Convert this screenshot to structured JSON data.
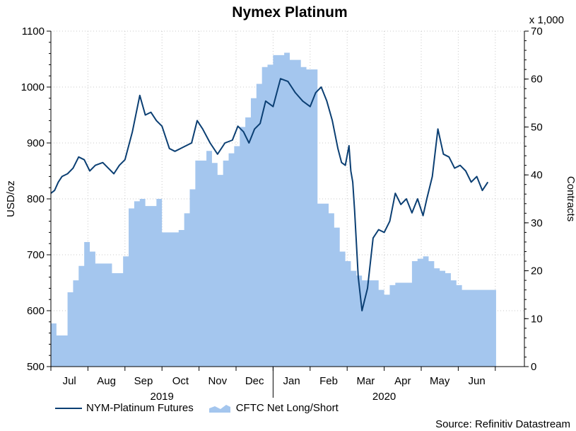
{
  "chart_data": {
    "type": "line",
    "title": "Nymex Platinum",
    "ylabel": "USD/oz",
    "y2label": "Contracts",
    "y2_multiplier_label": "x 1,000",
    "ylim": [
      500,
      1100
    ],
    "y2lim": [
      0,
      70
    ],
    "y_ticks": [
      500,
      600,
      700,
      800,
      900,
      1000,
      1100
    ],
    "y2_ticks": [
      0,
      10,
      20,
      30,
      40,
      50,
      60,
      70
    ],
    "x_month_labels": [
      "Jul",
      "Aug",
      "Sep",
      "Oct",
      "Nov",
      "Dec",
      "Jan",
      "Feb",
      "Mar",
      "Apr",
      "May",
      "Jun"
    ],
    "x_year_labels": [
      {
        "label": "2019",
        "month_index": 3
      },
      {
        "label": "2020",
        "month_index": 9
      }
    ],
    "grid": true,
    "legend_position": "bottom-left",
    "series": [
      {
        "name": "NYM-Platinum Futures",
        "axis": "left",
        "style": "line",
        "color": "#0b3f73",
        "t": [
          0.0,
          0.1,
          0.2,
          0.3,
          0.45,
          0.6,
          0.75,
          0.9,
          1.05,
          1.2,
          1.4,
          1.55,
          1.7,
          1.85,
          2.0,
          2.2,
          2.4,
          2.55,
          2.7,
          2.85,
          3.0,
          3.2,
          3.35,
          3.5,
          3.65,
          3.8,
          3.95,
          4.1,
          4.3,
          4.5,
          4.7,
          4.9,
          5.05,
          5.2,
          5.35,
          5.5,
          5.65,
          5.8,
          6.0,
          6.2,
          6.4,
          6.6,
          6.8,
          7.0,
          7.15,
          7.3,
          7.45,
          7.6,
          7.75,
          7.85,
          7.95,
          8.05,
          8.1,
          8.15,
          8.2,
          8.3,
          8.4,
          8.55,
          8.7,
          8.85,
          9.0,
          9.15,
          9.3,
          9.45,
          9.6,
          9.75,
          9.9,
          10.05,
          10.15,
          10.3,
          10.45,
          10.6,
          10.75,
          10.9,
          11.05,
          11.2,
          11.35,
          11.5,
          11.65,
          11.8
        ],
        "values": [
          810,
          815,
          830,
          840,
          845,
          855,
          875,
          870,
          850,
          860,
          865,
          855,
          845,
          860,
          870,
          920,
          985,
          950,
          955,
          940,
          930,
          890,
          885,
          890,
          895,
          900,
          940,
          925,
          900,
          880,
          900,
          905,
          930,
          920,
          900,
          925,
          935,
          975,
          965,
          1015,
          1010,
          990,
          975,
          965,
          990,
          1000,
          975,
          940,
          890,
          865,
          860,
          895,
          850,
          830,
          780,
          660,
          600,
          640,
          730,
          745,
          740,
          760,
          810,
          790,
          800,
          775,
          800,
          770,
          800,
          840,
          925,
          880,
          875,
          855,
          860,
          850,
          830,
          840,
          815,
          830
        ]
      },
      {
        "name": "CFTC Net Long/Short",
        "axis": "right",
        "style": "area",
        "color": "#a4c6ee",
        "t": [
          0.0,
          0.15,
          0.3,
          0.45,
          0.6,
          0.75,
          0.9,
          1.05,
          1.2,
          1.35,
          1.5,
          1.65,
          1.8,
          1.95,
          2.1,
          2.25,
          2.4,
          2.55,
          2.7,
          2.85,
          3.0,
          3.15,
          3.3,
          3.45,
          3.6,
          3.75,
          3.9,
          4.05,
          4.2,
          4.35,
          4.5,
          4.65,
          4.8,
          4.95,
          5.1,
          5.25,
          5.4,
          5.55,
          5.7,
          5.85,
          6.0,
          6.15,
          6.3,
          6.45,
          6.6,
          6.75,
          6.9,
          7.05,
          7.2,
          7.35,
          7.5,
          7.65,
          7.8,
          7.95,
          8.1,
          8.25,
          8.4,
          8.55,
          8.7,
          8.85,
          9.0,
          9.15,
          9.3,
          9.45,
          9.6,
          9.75,
          9.9,
          10.05,
          10.2,
          10.35,
          10.5,
          10.65,
          10.8,
          10.95,
          11.1,
          11.25,
          11.4,
          11.55,
          11.7,
          11.85
        ],
        "values": [
          9,
          6.5,
          6.5,
          15.5,
          18,
          21,
          26,
          24,
          21.5,
          21.5,
          21.5,
          19.5,
          19.5,
          23,
          33,
          34.5,
          35,
          33.5,
          33.5,
          35,
          28,
          28,
          28,
          28.5,
          32,
          37,
          43,
          43,
          45,
          42.5,
          40,
          43,
          44.5,
          46,
          50,
          52,
          56,
          59,
          62.5,
          63,
          65,
          65,
          65.5,
          64,
          64,
          62.5,
          62,
          62,
          34,
          34,
          32,
          29,
          24,
          22,
          20,
          19,
          18,
          18,
          18,
          16,
          15,
          17,
          17.5,
          17.5,
          17.5,
          22,
          22.5,
          23,
          22,
          20.5,
          20,
          19.5,
          18,
          17,
          16,
          16,
          16,
          16,
          16,
          16
        ]
      }
    ]
  },
  "source_text": "Source: Refinitiv Datastream"
}
